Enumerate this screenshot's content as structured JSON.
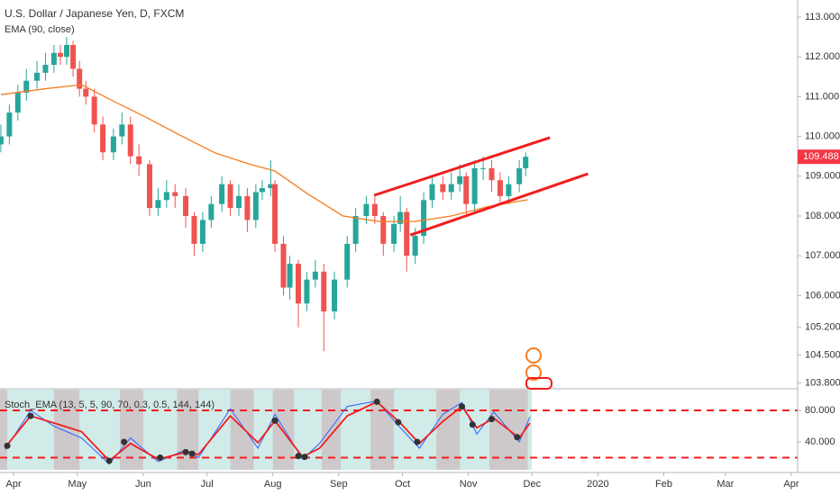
{
  "chart_data": [
    {
      "type": "candlestick",
      "title": "U.S. Dollar / Japanese Yen, D, FXCM",
      "indicator": "EMA (90, close)",
      "x": [
        -6,
        -2,
        2,
        6,
        11,
        15,
        19,
        22,
        25,
        28,
        31,
        34,
        38,
        42,
        47,
        51,
        55,
        59,
        64,
        68,
        72,
        76,
        81,
        85,
        89,
        93,
        98,
        102,
        106,
        110,
        114,
        117,
        121,
        123,
        127,
        130,
        134,
        138,
        142,
        146,
        151,
        157,
        161,
        166,
        170,
        174,
        179,
        182,
        185,
        189,
        193,
        197,
        202,
        206,
        210,
        213,
        217,
        221,
        225,
        229,
        233,
        238,
        241
      ],
      "open": [
        109.8,
        110.0,
        110.6,
        111.1,
        111.4,
        111.6,
        111.8,
        112.1,
        112.0,
        112.3,
        111.7,
        111.2,
        111.0,
        110.3,
        109.6,
        110.0,
        110.3,
        109.5,
        109.3,
        108.2,
        108.4,
        108.6,
        108.5,
        108.0,
        107.3,
        107.9,
        108.3,
        108.8,
        108.2,
        108.5,
        107.9,
        108.6,
        108.7,
        108.8,
        107.3,
        106.2,
        106.8,
        105.8,
        106.4,
        106.6,
        105.6,
        106.4,
        107.3,
        108.0,
        108.3,
        108.0,
        107.3,
        107.8,
        108.1,
        107.0,
        107.5,
        108.4,
        108.8,
        108.6,
        108.8,
        109.0,
        108.3,
        109.2,
        109.2,
        108.9,
        108.5,
        108.8,
        109.2
      ],
      "high": [
        110.3,
        110.8,
        111.3,
        111.7,
        111.9,
        112.1,
        112.3,
        112.3,
        112.5,
        112.4,
        111.9,
        111.4,
        111.2,
        110.5,
        110.2,
        110.6,
        110.5,
        109.8,
        109.4,
        108.7,
        108.9,
        108.8,
        108.7,
        108.1,
        108.1,
        108.5,
        109.0,
        108.9,
        108.8,
        108.7,
        108.8,
        108.9,
        109.4,
        108.9,
        107.5,
        107.0,
        106.9,
        106.6,
        106.9,
        106.8,
        106.6,
        107.5,
        108.2,
        108.5,
        108.5,
        108.1,
        108.0,
        108.5,
        108.2,
        107.7,
        108.6,
        109.0,
        109.0,
        109.1,
        109.3,
        109.1,
        109.4,
        109.5,
        109.4,
        109.1,
        109.0,
        109.4,
        109.6
      ],
      "low": [
        109.6,
        109.8,
        110.4,
        110.9,
        111.2,
        111.4,
        111.6,
        111.8,
        111.8,
        111.5,
        111.0,
        110.8,
        110.1,
        109.4,
        109.4,
        109.8,
        109.3,
        109.0,
        108.0,
        108.0,
        108.2,
        108.2,
        107.7,
        107.0,
        107.1,
        107.7,
        108.1,
        108.0,
        108.0,
        107.6,
        107.7,
        108.4,
        108.5,
        107.1,
        106.0,
        105.9,
        105.2,
        105.6,
        106.2,
        104.6,
        105.4,
        106.2,
        107.1,
        107.8,
        107.8,
        107.0,
        107.1,
        107.6,
        106.6,
        106.8,
        107.3,
        108.2,
        108.4,
        108.4,
        108.6,
        108.0,
        108.1,
        108.9,
        108.6,
        108.3,
        108.3,
        108.6,
        109.0
      ],
      "close": [
        110.0,
        110.6,
        111.1,
        111.4,
        111.6,
        111.8,
        112.1,
        112.0,
        112.3,
        111.7,
        111.2,
        111.0,
        110.3,
        109.6,
        110.0,
        110.3,
        109.5,
        109.3,
        108.2,
        108.4,
        108.6,
        108.5,
        108.0,
        107.3,
        107.9,
        108.3,
        108.8,
        108.2,
        108.5,
        107.9,
        108.6,
        108.7,
        108.8,
        107.3,
        106.2,
        106.8,
        105.8,
        106.4,
        106.6,
        105.6,
        106.4,
        107.3,
        108.0,
        108.3,
        108.0,
        107.3,
        107.8,
        108.1,
        107.0,
        107.5,
        108.4,
        108.8,
        108.6,
        108.8,
        109.0,
        108.3,
        109.2,
        109.2,
        108.9,
        108.5,
        108.8,
        109.2,
        109.49
      ],
      "up_color": "#26a69a",
      "down_color": "#ef5350",
      "ema": {
        "color": "#f57c1f",
        "x": [
          -6,
          15,
          32,
          45,
          62,
          78,
          95,
          112,
          123,
          138,
          155,
          172,
          189,
          206,
          223,
          242
        ],
        "values": [
          111.05,
          111.2,
          111.3,
          110.94,
          110.49,
          110.04,
          109.58,
          109.29,
          109.13,
          108.57,
          108.0,
          107.86,
          107.86,
          108.0,
          108.23,
          108.41
        ]
      },
      "trend_lines": [
        {
          "color": "#f21d1d",
          "x": [
            169.7,
            252.4
          ],
          "values": [
            108.52,
            109.97
          ]
        },
        {
          "color": "#f21d1d",
          "x": [
            186.7,
            270.3
          ],
          "values": [
            107.52,
            109.06
          ]
        }
      ],
      "last_price": 109.488,
      "xlim": [
        -6.4,
        369
      ],
      "ylim": [
        103.7,
        113.43
      ],
      "yticks": [
        {
          "value": 113,
          "label": "113.000"
        },
        {
          "value": 112,
          "label": "112.000"
        },
        {
          "value": 111,
          "label": "111.000"
        },
        {
          "value": 110,
          "label": "110.000"
        },
        {
          "value": 109,
          "label": "109.000"
        },
        {
          "value": 108,
          "label": "108.000"
        },
        {
          "value": 107,
          "label": "107.000"
        },
        {
          "value": 106,
          "label": "106.000"
        },
        {
          "value": 105.2,
          "label": "105.200"
        },
        {
          "value": 104.5,
          "label": "104.500"
        },
        {
          "value": 103.8,
          "label": "103.800"
        }
      ],
      "xticks": [
        {
          "value": 0,
          "label": "Apr"
        },
        {
          "value": 30,
          "label": "May"
        },
        {
          "value": 61,
          "label": "Jun"
        },
        {
          "value": 91,
          "label": "Jul"
        },
        {
          "value": 122,
          "label": "Aug"
        },
        {
          "value": 153,
          "label": "Sep"
        },
        {
          "value": 183,
          "label": "Oct"
        },
        {
          "value": 214,
          "label": "Nov"
        },
        {
          "value": 244,
          "label": "Dec"
        },
        {
          "value": 275,
          "label": "2020"
        },
        {
          "value": 306,
          "label": "Feb"
        },
        {
          "value": 335,
          "label": "Mar"
        },
        {
          "value": 366,
          "label": "Apr"
        }
      ]
    },
    {
      "type": "line",
      "title": "Stoch_EMA (13, 5, 5, 90, 70, 0.3, 0.5, 144, 144)",
      "series": [
        {
          "color": "#2962ff",
          "x": [
            -4,
            8,
            19,
            32,
            45,
            55,
            68,
            81,
            87,
            102,
            115,
            123,
            136,
            144,
            157,
            171,
            182,
            191,
            202,
            211,
            218,
            226,
            238,
            243
          ],
          "values": [
            30,
            80,
            60,
            45,
            12,
            45,
            15,
            30,
            20,
            82,
            32,
            75,
            18,
            38,
            85,
            92,
            58,
            32,
            75,
            90,
            50,
            78,
            40,
            72
          ]
        },
        {
          "color": "#f21d1d",
          "x": [
            -4,
            8,
            19,
            32,
            45,
            55,
            68,
            81,
            87,
            102,
            115,
            123,
            136,
            144,
            157,
            171,
            182,
            191,
            202,
            211,
            218,
            226,
            238,
            243
          ],
          "values": [
            33,
            73,
            64,
            53,
            16,
            38,
            18,
            27,
            24,
            73,
            39,
            67,
            21,
            32,
            73,
            91,
            64,
            38,
            66,
            85,
            58,
            70,
            45,
            64
          ]
        }
      ],
      "dots": {
        "x": [
          -3,
          8,
          45,
          52,
          69,
          81,
          84,
          123,
          134,
          137,
          171,
          181,
          190,
          211,
          216,
          225,
          237
        ],
        "values": [
          35,
          73,
          16,
          40,
          20,
          27,
          25,
          67,
          22,
          21,
          91,
          65,
          40,
          85,
          62,
          69,
          46
        ]
      },
      "grey_zones": [
        [
          -6.4,
          -3
        ],
        [
          19,
          31
        ],
        [
          50,
          61
        ],
        [
          77,
          87
        ],
        [
          102,
          113
        ],
        [
          122,
          132
        ],
        [
          145,
          154
        ],
        [
          168,
          179
        ],
        [
          199,
          210
        ],
        [
          224,
          242
        ]
      ],
      "levels": [
        80,
        20
      ],
      "xlim": [
        -6.4,
        369
      ],
      "ylim": [
        4.6,
        106.3
      ],
      "yticks": [
        {
          "value": 80,
          "label": "80.000"
        },
        {
          "value": 40,
          "label": "40.000"
        }
      ]
    }
  ]
}
